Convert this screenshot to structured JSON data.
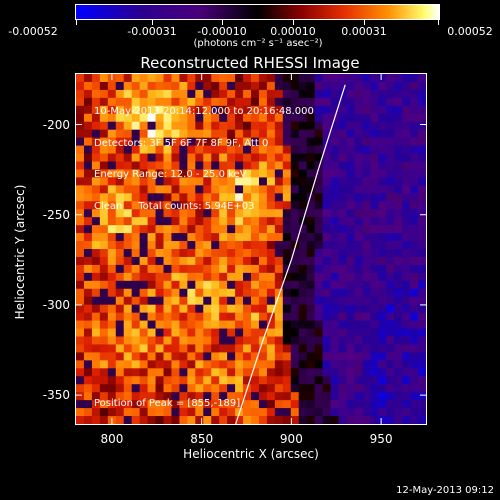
{
  "colorbar": {
    "tick_labels": [
      "-0.00052",
      "-0.00031",
      "-0.00010",
      "0.00010",
      "0.00031",
      "0.00052"
    ],
    "unit_label": "(photons cm⁻² s⁻¹ asec⁻²)",
    "min": -0.00052,
    "max": 0.00052
  },
  "title": "Reconstructed RHESSI Image",
  "info_lines": [
    "10-May-2013 20:14:12.000 to 20:16:48.000",
    "Detectors: 3F 5F 6F 7F 8F 9F, Att 0",
    "Energy Range: 12.0 - 25.0 keV",
    "Clean     Total counts: 5.94E+03"
  ],
  "peak_label": "Position of Peak = [855,-189]",
  "timestamp": "12-May-2013 09:12",
  "chart_data": {
    "type": "heatmap",
    "title": "Reconstructed RHESSI Image",
    "xlabel": "Heliocentric X (arcsec)",
    "ylabel": "Heliocentric Y (arcsec)",
    "xlim": [
      780,
      975
    ],
    "ylim": [
      -366,
      -172
    ],
    "x_ticks": [
      800,
      850,
      900,
      950
    ],
    "y_ticks": [
      -200,
      -250,
      -300,
      -350
    ],
    "peak": [
      855,
      -189
    ],
    "limb_curve": {
      "x": [
        869,
        884,
        900,
        915,
        930
      ],
      "y": [
        -366,
        -320,
        -275,
        -225,
        -178
      ]
    },
    "colors": {
      "negative_deep": "#0000ff",
      "negative": "#4a007a",
      "zero": "#000000",
      "positive": "#e63000",
      "positive_high": "#ffff70",
      "max": "#ffffff"
    }
  }
}
